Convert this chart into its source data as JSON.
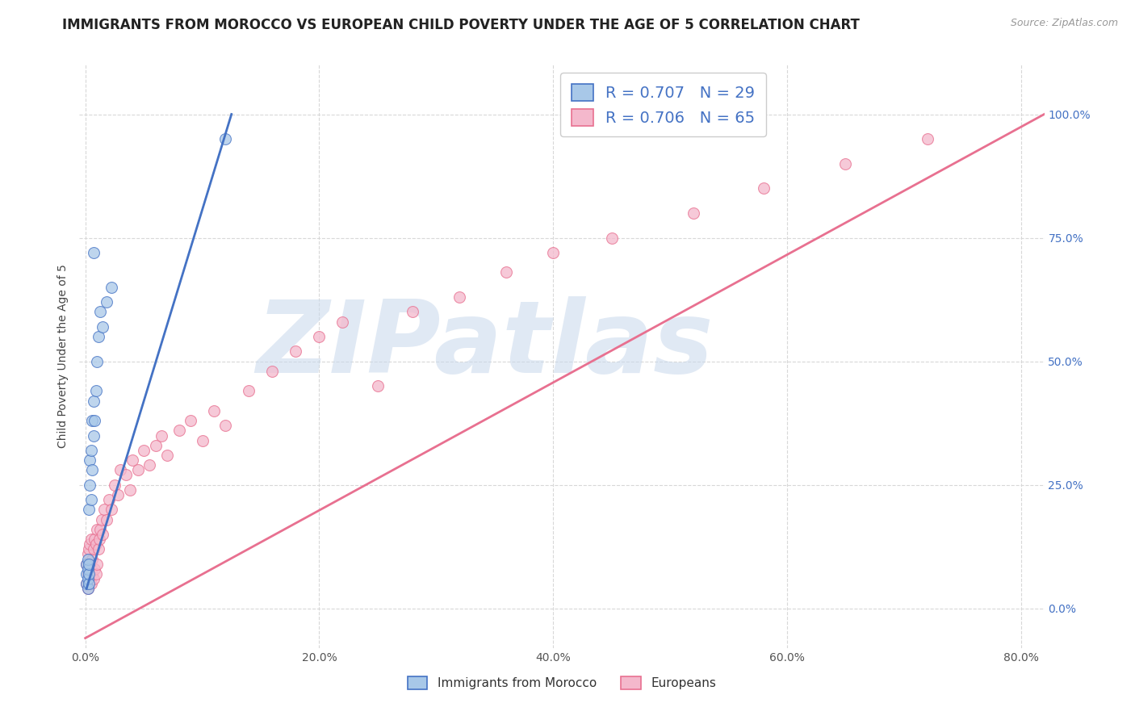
{
  "title": "IMMIGRANTS FROM MOROCCO VS EUROPEAN CHILD POVERTY UNDER THE AGE OF 5 CORRELATION CHART",
  "source": "Source: ZipAtlas.com",
  "ylabel": "Child Poverty Under the Age of 5",
  "legend_label_blue": "Immigrants from Morocco",
  "legend_label_pink": "Europeans",
  "R_blue": 0.707,
  "N_blue": 29,
  "R_pink": 0.706,
  "N_pink": 65,
  "color_blue": "#a8c8e8",
  "color_pink": "#f4b8cc",
  "line_color_blue": "#4472c4",
  "line_color_pink": "#e87090",
  "watermark_text": "ZIPatlas",
  "watermark_color": "#c8d8ec",
  "bg_color": "#ffffff",
  "grid_color": "#d8d8d8",
  "xlim": [
    -0.005,
    0.82
  ],
  "ylim": [
    -0.08,
    1.1
  ],
  "xticks": [
    0.0,
    0.2,
    0.4,
    0.6,
    0.8
  ],
  "yticks": [
    0.0,
    0.25,
    0.5,
    0.75,
    1.0
  ],
  "blue_scatter_x": [
    0.001,
    0.001,
    0.001,
    0.002,
    0.002,
    0.002,
    0.002,
    0.003,
    0.003,
    0.003,
    0.003,
    0.004,
    0.004,
    0.005,
    0.005,
    0.006,
    0.006,
    0.007,
    0.007,
    0.008,
    0.009,
    0.01,
    0.011,
    0.013,
    0.015,
    0.018,
    0.022,
    0.007,
    0.12
  ],
  "blue_scatter_y": [
    0.05,
    0.07,
    0.09,
    0.04,
    0.06,
    0.08,
    0.1,
    0.05,
    0.07,
    0.09,
    0.2,
    0.25,
    0.3,
    0.22,
    0.32,
    0.28,
    0.38,
    0.35,
    0.42,
    0.38,
    0.44,
    0.5,
    0.55,
    0.6,
    0.57,
    0.62,
    0.65,
    0.72,
    0.95
  ],
  "pink_scatter_x": [
    0.001,
    0.001,
    0.002,
    0.002,
    0.002,
    0.003,
    0.003,
    0.003,
    0.004,
    0.004,
    0.004,
    0.005,
    0.005,
    0.005,
    0.006,
    0.006,
    0.007,
    0.007,
    0.008,
    0.008,
    0.009,
    0.009,
    0.01,
    0.01,
    0.011,
    0.012,
    0.013,
    0.014,
    0.015,
    0.016,
    0.018,
    0.02,
    0.022,
    0.025,
    0.028,
    0.03,
    0.035,
    0.038,
    0.04,
    0.045,
    0.05,
    0.055,
    0.06,
    0.065,
    0.07,
    0.08,
    0.09,
    0.1,
    0.11,
    0.12,
    0.14,
    0.16,
    0.18,
    0.2,
    0.22,
    0.25,
    0.28,
    0.32,
    0.36,
    0.4,
    0.45,
    0.52,
    0.58,
    0.65,
    0.72
  ],
  "pink_scatter_y": [
    0.05,
    0.09,
    0.04,
    0.07,
    0.11,
    0.05,
    0.08,
    0.12,
    0.06,
    0.09,
    0.13,
    0.05,
    0.08,
    0.14,
    0.07,
    0.1,
    0.06,
    0.12,
    0.08,
    0.14,
    0.07,
    0.13,
    0.09,
    0.16,
    0.12,
    0.14,
    0.16,
    0.18,
    0.15,
    0.2,
    0.18,
    0.22,
    0.2,
    0.25,
    0.23,
    0.28,
    0.27,
    0.24,
    0.3,
    0.28,
    0.32,
    0.29,
    0.33,
    0.35,
    0.31,
    0.36,
    0.38,
    0.34,
    0.4,
    0.37,
    0.44,
    0.48,
    0.52,
    0.55,
    0.58,
    0.45,
    0.6,
    0.63,
    0.68,
    0.72,
    0.75,
    0.8,
    0.85,
    0.9,
    0.95
  ],
  "blue_line_x": [
    0.001,
    0.125
  ],
  "blue_line_y": [
    0.04,
    1.0
  ],
  "pink_line_x": [
    0.0,
    0.82
  ],
  "pink_line_y": [
    -0.06,
    1.0
  ],
  "title_fontsize": 12,
  "axis_label_fontsize": 10,
  "tick_fontsize": 10,
  "scatter_size": 100
}
